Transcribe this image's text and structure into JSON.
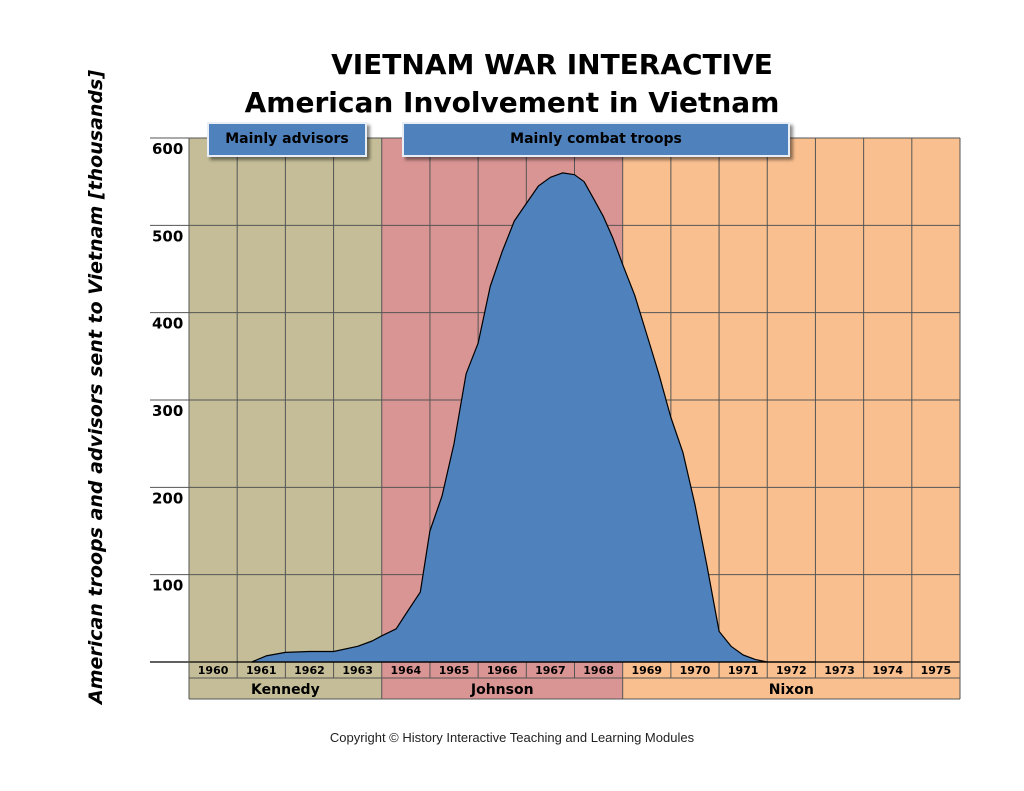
{
  "title": "VIETNAM WAR INTERACTIVE",
  "subtitle": "American Involvement in Vietnam",
  "copyright": "Copyright © History Interactive Teaching and Learning Modules",
  "banners": {
    "advisors": "Mainly advisors",
    "combat": "Mainly combat troops"
  },
  "chart_data": {
    "type": "area",
    "ylabel": "American troops and advisors sent to Vietnam [thousands]",
    "ylim": [
      0,
      600
    ],
    "xlim": [
      1960,
      1976
    ],
    "yticks": [
      "100",
      "200",
      "300",
      "400",
      "500",
      "600"
    ],
    "years": [
      "1960",
      "1961",
      "1962",
      "1963",
      "1964",
      "1965",
      "1966",
      "1967",
      "1968",
      "1969",
      "1970",
      "1971",
      "1972",
      "1973",
      "1974",
      "1975"
    ],
    "presidents": [
      {
        "name": "Kennedy",
        "start": 1960,
        "end": 1964,
        "color": "#c4bd97"
      },
      {
        "name": "Johnson",
        "start": 1964,
        "end": 1969,
        "color": "#d99594"
      },
      {
        "name": "Nixon",
        "start": 1969,
        "end": 1976,
        "color": "#f9bf8f"
      }
    ],
    "series": [
      {
        "color": "#4f81bd",
        "x": [
          1961.3,
          1961.6,
          1962.0,
          1962.5,
          1963.0,
          1963.5,
          1963.8,
          1964.0,
          1964.3,
          1964.5,
          1964.8,
          1965.0,
          1965.25,
          1965.5,
          1965.75,
          1966.0,
          1966.25,
          1966.5,
          1966.75,
          1967.0,
          1967.25,
          1967.5,
          1967.75,
          1968.0,
          1968.2,
          1968.4,
          1968.6,
          1968.8,
          1969.0,
          1969.25,
          1969.5,
          1969.75,
          1970.0,
          1970.25,
          1970.5,
          1970.75,
          1971.0,
          1971.25,
          1971.5,
          1971.75,
          1972.0,
          1972.25,
          1972.5,
          1972.75,
          1973.0
        ],
        "values": [
          0,
          7,
          11,
          12,
          12,
          18,
          24,
          30,
          38,
          55,
          80,
          150,
          190,
          250,
          330,
          365,
          430,
          470,
          505,
          525,
          545,
          555,
          560,
          558,
          550,
          530,
          510,
          485,
          455,
          420,
          375,
          330,
          280,
          240,
          180,
          110,
          35,
          18,
          8,
          3,
          0,
          0,
          0,
          0,
          0
        ]
      }
    ]
  }
}
